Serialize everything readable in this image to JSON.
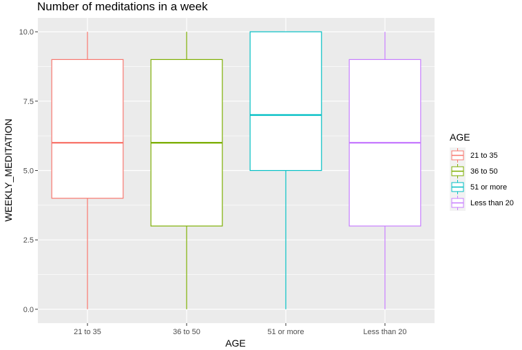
{
  "chart_data": {
    "type": "boxplot",
    "title": "Number of meditations in a week",
    "xlabel": "AGE",
    "ylabel": "WEEKLY_MEDITATION",
    "ylim": [
      -0.5,
      10.5
    ],
    "yticks": [
      "0.0",
      "2.5",
      "5.0",
      "7.5",
      "10.0"
    ],
    "ytick_values": [
      0,
      2.5,
      5,
      7.5,
      10
    ],
    "categories": [
      "21 to 35",
      "36 to 50",
      "51 or more",
      "Less than 20"
    ],
    "boxes": [
      {
        "name": "21 to 35",
        "min": 0,
        "q1": 4,
        "median": 6,
        "q3": 9,
        "max": 10,
        "color": "#F8766D"
      },
      {
        "name": "36 to 50",
        "min": 0,
        "q1": 3,
        "median": 6,
        "q3": 9,
        "max": 10,
        "color": "#7CAE00"
      },
      {
        "name": "51 or more",
        "min": 0,
        "q1": 5,
        "median": 7,
        "q3": 10,
        "max": 10,
        "color": "#00BFC4"
      },
      {
        "name": "Less than 20",
        "min": 0,
        "q1": 3,
        "median": 6,
        "q3": 9,
        "max": 10,
        "color": "#C77CFF"
      }
    ],
    "grid": true,
    "legend": {
      "title": "AGE",
      "position": "right"
    },
    "panel_background": "#EBEBEB",
    "gridline_color": "#FFFFFF"
  }
}
